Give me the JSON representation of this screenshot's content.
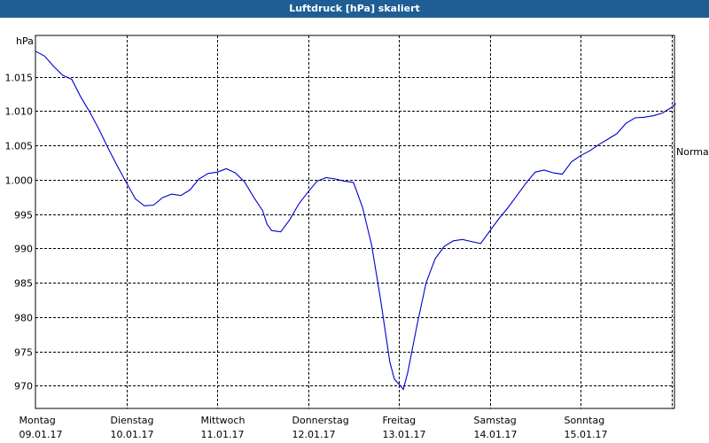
{
  "window": {
    "title": "Luftdruck [hPa] skaliert"
  },
  "chart_data": {
    "type": "line",
    "title": "Luftdruck [hPa] skaliert",
    "ylabel": "hPa",
    "ylim": [
      966.7,
      1021
    ],
    "xlim": [
      0,
      7
    ],
    "y_ticks": [
      970,
      975,
      980,
      985,
      990,
      995,
      1000,
      1005,
      1010,
      1015
    ],
    "y_tick_labels": [
      "970",
      "975",
      "980",
      "985",
      "990",
      "995",
      "1.000",
      "1.005",
      "1.010",
      "1.015"
    ],
    "x_categories": [
      {
        "day": "Montag",
        "date": "09.01.17"
      },
      {
        "day": "Dienstag",
        "date": "10.01.17"
      },
      {
        "day": "Mittwoch",
        "date": "11.01.17"
      },
      {
        "day": "Donnerstag",
        "date": "12.01.17"
      },
      {
        "day": "Freitag",
        "date": "13.01.17"
      },
      {
        "day": "Samstag",
        "date": "14.01.17"
      },
      {
        "day": "Sonntag",
        "date": "15.01.17"
      }
    ],
    "reference_line": {
      "label": "Normal",
      "value": 1004.6
    },
    "grid": true,
    "line_color": "#0000cc",
    "series": [
      {
        "points": [
          [
            0.0,
            1018.7
          ],
          [
            0.1,
            1018.0
          ],
          [
            0.2,
            1016.5
          ],
          [
            0.3,
            1015.2
          ],
          [
            0.4,
            1014.6
          ],
          [
            0.5,
            1012.0
          ],
          [
            0.6,
            1009.8
          ],
          [
            0.7,
            1007.3
          ],
          [
            0.8,
            1004.6
          ],
          [
            0.9,
            1002.0
          ],
          [
            1.0,
            999.6
          ],
          [
            1.1,
            997.2
          ],
          [
            1.2,
            996.2
          ],
          [
            1.3,
            996.3
          ],
          [
            1.4,
            997.4
          ],
          [
            1.5,
            997.9
          ],
          [
            1.6,
            997.7
          ],
          [
            1.7,
            998.5
          ],
          [
            1.8,
            1000.1
          ],
          [
            1.9,
            1000.9
          ],
          [
            2.0,
            1001.1
          ],
          [
            2.1,
            1001.6
          ],
          [
            2.2,
            1001.0
          ],
          [
            2.3,
            999.7
          ],
          [
            2.4,
            997.5
          ],
          [
            2.5,
            995.5
          ],
          [
            2.55,
            993.5
          ],
          [
            2.6,
            992.6
          ],
          [
            2.7,
            992.4
          ],
          [
            2.8,
            994.2
          ],
          [
            2.9,
            996.5
          ],
          [
            3.0,
            998.2
          ],
          [
            3.1,
            999.8
          ],
          [
            3.2,
            1000.3
          ],
          [
            3.3,
            1000.1
          ],
          [
            3.4,
            999.8
          ],
          [
            3.5,
            999.6
          ],
          [
            3.6,
            996.0
          ],
          [
            3.7,
            990.5
          ],
          [
            3.8,
            982.5
          ],
          [
            3.9,
            973.5
          ],
          [
            3.95,
            971.0
          ],
          [
            4.05,
            969.5
          ],
          [
            4.1,
            972.0
          ],
          [
            4.2,
            978.8
          ],
          [
            4.3,
            985.0
          ],
          [
            4.4,
            988.5
          ],
          [
            4.5,
            990.3
          ],
          [
            4.6,
            991.1
          ],
          [
            4.7,
            991.3
          ],
          [
            4.8,
            991.0
          ],
          [
            4.9,
            990.7
          ],
          [
            5.0,
            992.5
          ],
          [
            5.1,
            994.3
          ],
          [
            5.2,
            995.9
          ],
          [
            5.3,
            997.7
          ],
          [
            5.4,
            999.5
          ],
          [
            5.5,
            1001.1
          ],
          [
            5.6,
            1001.4
          ],
          [
            5.7,
            1001.0
          ],
          [
            5.8,
            1000.8
          ],
          [
            5.9,
            1002.6
          ],
          [
            6.0,
            1003.5
          ],
          [
            6.1,
            1004.2
          ],
          [
            6.2,
            1005.1
          ],
          [
            6.3,
            1005.9
          ],
          [
            6.4,
            1006.7
          ],
          [
            6.5,
            1008.2
          ],
          [
            6.6,
            1009.0
          ],
          [
            6.7,
            1009.1
          ],
          [
            6.8,
            1009.3
          ],
          [
            6.9,
            1009.7
          ],
          [
            7.0,
            1010.5
          ],
          [
            7.05,
            1011.1
          ]
        ]
      }
    ]
  }
}
